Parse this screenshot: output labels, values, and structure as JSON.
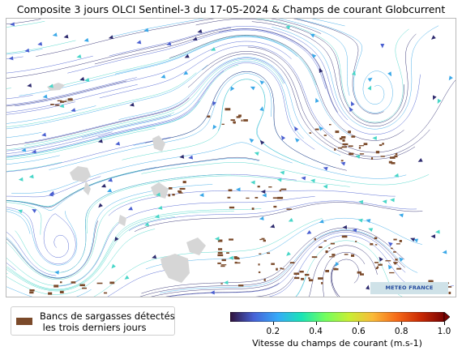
{
  "title": "Composite 3 jours OLCI Sentinel-3 du 17-05-2024 & Champs de courant Globcurrent",
  "credit": "METEO FRANCE",
  "legend": {
    "label": "Bancs de sargasses détectés\n les trois derniers jours",
    "swatch_color": "#7b4a2a"
  },
  "colorbar": {
    "label": "Vitesse du champs de courant (m.s-1)",
    "ticks": [
      "0.2",
      "0.4",
      "0.6",
      "0.8",
      "1.0"
    ],
    "tick_values": [
      0.2,
      0.4,
      0.6,
      0.8,
      1.0
    ],
    "range": [
      0,
      1.0
    ],
    "colormap": [
      "#30123b",
      "#4662d7",
      "#36aaf9",
      "#1ae4b6",
      "#72fe5e",
      "#c8ef34",
      "#faba39",
      "#f66b19",
      "#ca2a04",
      "#7a0403"
    ]
  },
  "map": {
    "land_color": "#d6d6d6",
    "sargassum_color": "#7b4a2a",
    "streamline_colors": [
      "#2d2a6e",
      "#4a5fd0",
      "#3aa8e8",
      "#48d6c8"
    ]
  }
}
